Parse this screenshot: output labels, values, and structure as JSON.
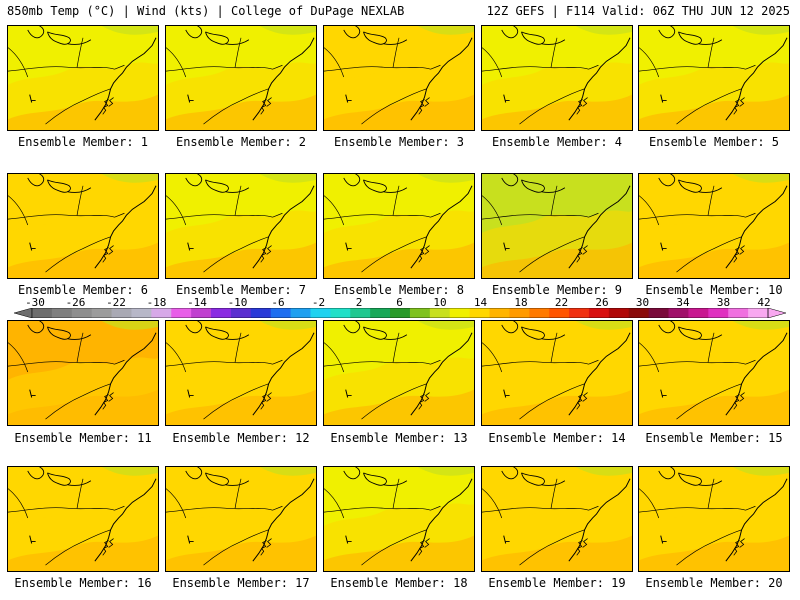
{
  "header": {
    "left": "850mb Temp (°C) | Wind (kts) | College of DuPage NEXLAB",
    "right": "12Z GEFS | F114 Valid: 06Z THU JUN 12 2025"
  },
  "panels": [
    {
      "label": "Ensemble Member: 1",
      "dominant_temp_c": 16
    },
    {
      "label": "Ensemble Member: 2",
      "dominant_temp_c": 16
    },
    {
      "label": "Ensemble Member: 3",
      "dominant_temp_c": 18
    },
    {
      "label": "Ensemble Member: 4",
      "dominant_temp_c": 16
    },
    {
      "label": "Ensemble Member: 5",
      "dominant_temp_c": 16
    },
    {
      "label": "Ensemble Member: 6",
      "dominant_temp_c": 18
    },
    {
      "label": "Ensemble Member: 7",
      "dominant_temp_c": 16
    },
    {
      "label": "Ensemble Member: 8",
      "dominant_temp_c": 16
    },
    {
      "label": "Ensemble Member: 9",
      "dominant_temp_c": 14
    },
    {
      "label": "Ensemble Member: 10",
      "dominant_temp_c": 18
    },
    {
      "label": "Ensemble Member: 11",
      "dominant_temp_c": 20
    },
    {
      "label": "Ensemble Member: 12",
      "dominant_temp_c": 18
    },
    {
      "label": "Ensemble Member: 13",
      "dominant_temp_c": 16
    },
    {
      "label": "Ensemble Member: 14",
      "dominant_temp_c": 18
    },
    {
      "label": "Ensemble Member: 15",
      "dominant_temp_c": 18
    },
    {
      "label": "Ensemble Member: 16",
      "dominant_temp_c": 18
    },
    {
      "label": "Ensemble Member: 17",
      "dominant_temp_c": 18
    },
    {
      "label": "Ensemble Member: 18",
      "dominant_temp_c": 16
    },
    {
      "label": "Ensemble Member: 19",
      "dominant_temp_c": 18
    },
    {
      "label": "Ensemble Member: 20",
      "dominant_temp_c": 18
    }
  ],
  "colorbar": {
    "tick_labels": [
      "-30",
      "-26",
      "-22",
      "-18",
      "-14",
      "-10",
      "-6",
      "-2",
      "2",
      "6",
      "10",
      "14",
      "18",
      "22",
      "26",
      "30",
      "34",
      "38",
      "42"
    ],
    "colors": [
      "#6e6e6e",
      "#7f7f7f",
      "#8e8e8e",
      "#9c9c9c",
      "#a9a9b4",
      "#b7b7c8",
      "#d7a8e8",
      "#e85ee8",
      "#c040d0",
      "#8a2be2",
      "#5a2fd0",
      "#2a3ad8",
      "#1e6ef0",
      "#1ea0f0",
      "#1ed2f0",
      "#20e0c8",
      "#20c890",
      "#18a858",
      "#2a9a2a",
      "#7fc21e",
      "#c8e01e",
      "#f0f000",
      "#ffd700",
      "#ffb400",
      "#ff9a00",
      "#ff7a00",
      "#ff5400",
      "#f03010",
      "#d81010",
      "#b00808",
      "#8a0a0a",
      "#7a0a3a",
      "#a0106a",
      "#c81890",
      "#e030c0",
      "#f070e0",
      "#f8a8f0"
    ]
  }
}
